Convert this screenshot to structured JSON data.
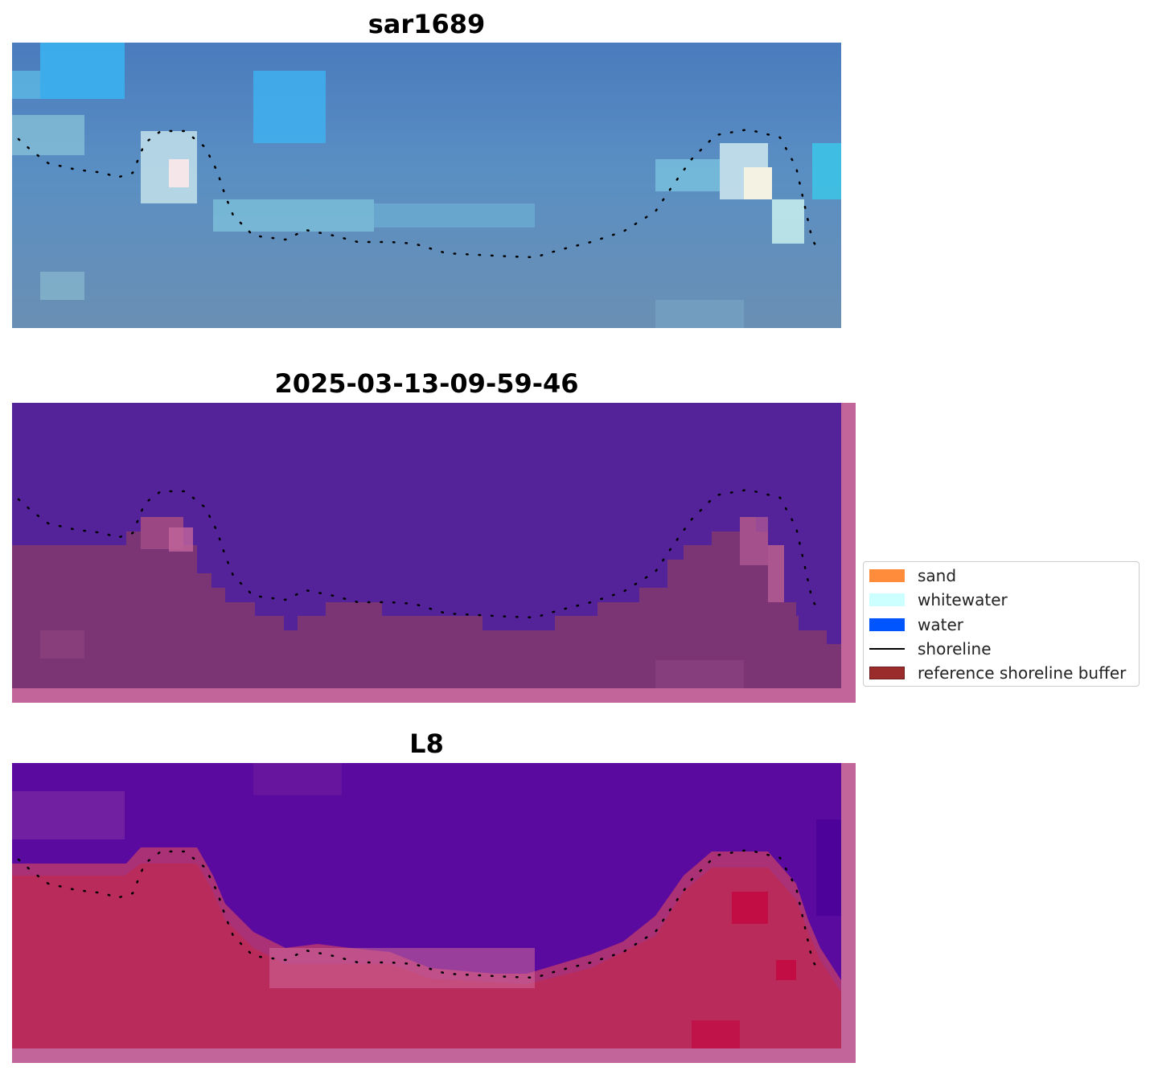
{
  "panels": [
    {
      "title": "sar1689"
    },
    {
      "title": "2025-03-13-09-59-46"
    },
    {
      "title": "L8"
    }
  ],
  "legend": {
    "items": [
      {
        "label": "sand",
        "color": "#ff8c3a",
        "kind": "patch"
      },
      {
        "label": "whitewater",
        "color": "#ccffff",
        "kind": "patch"
      },
      {
        "label": "water",
        "color": "#0055ff",
        "kind": "patch"
      },
      {
        "label": "shoreline",
        "color": "#000000",
        "kind": "line"
      },
      {
        "label": "reference shoreline buffer",
        "color": "#9b2c2c",
        "kind": "patch"
      }
    ]
  },
  "colors": {
    "rgb_water": "#4a7bb8",
    "classified_water": "#54239a",
    "classified_land": "#7b3575",
    "buffer_edge": "#c2659a",
    "mndwi_water": "#5a0a9e",
    "mndwi_land": "#c2284d"
  }
}
